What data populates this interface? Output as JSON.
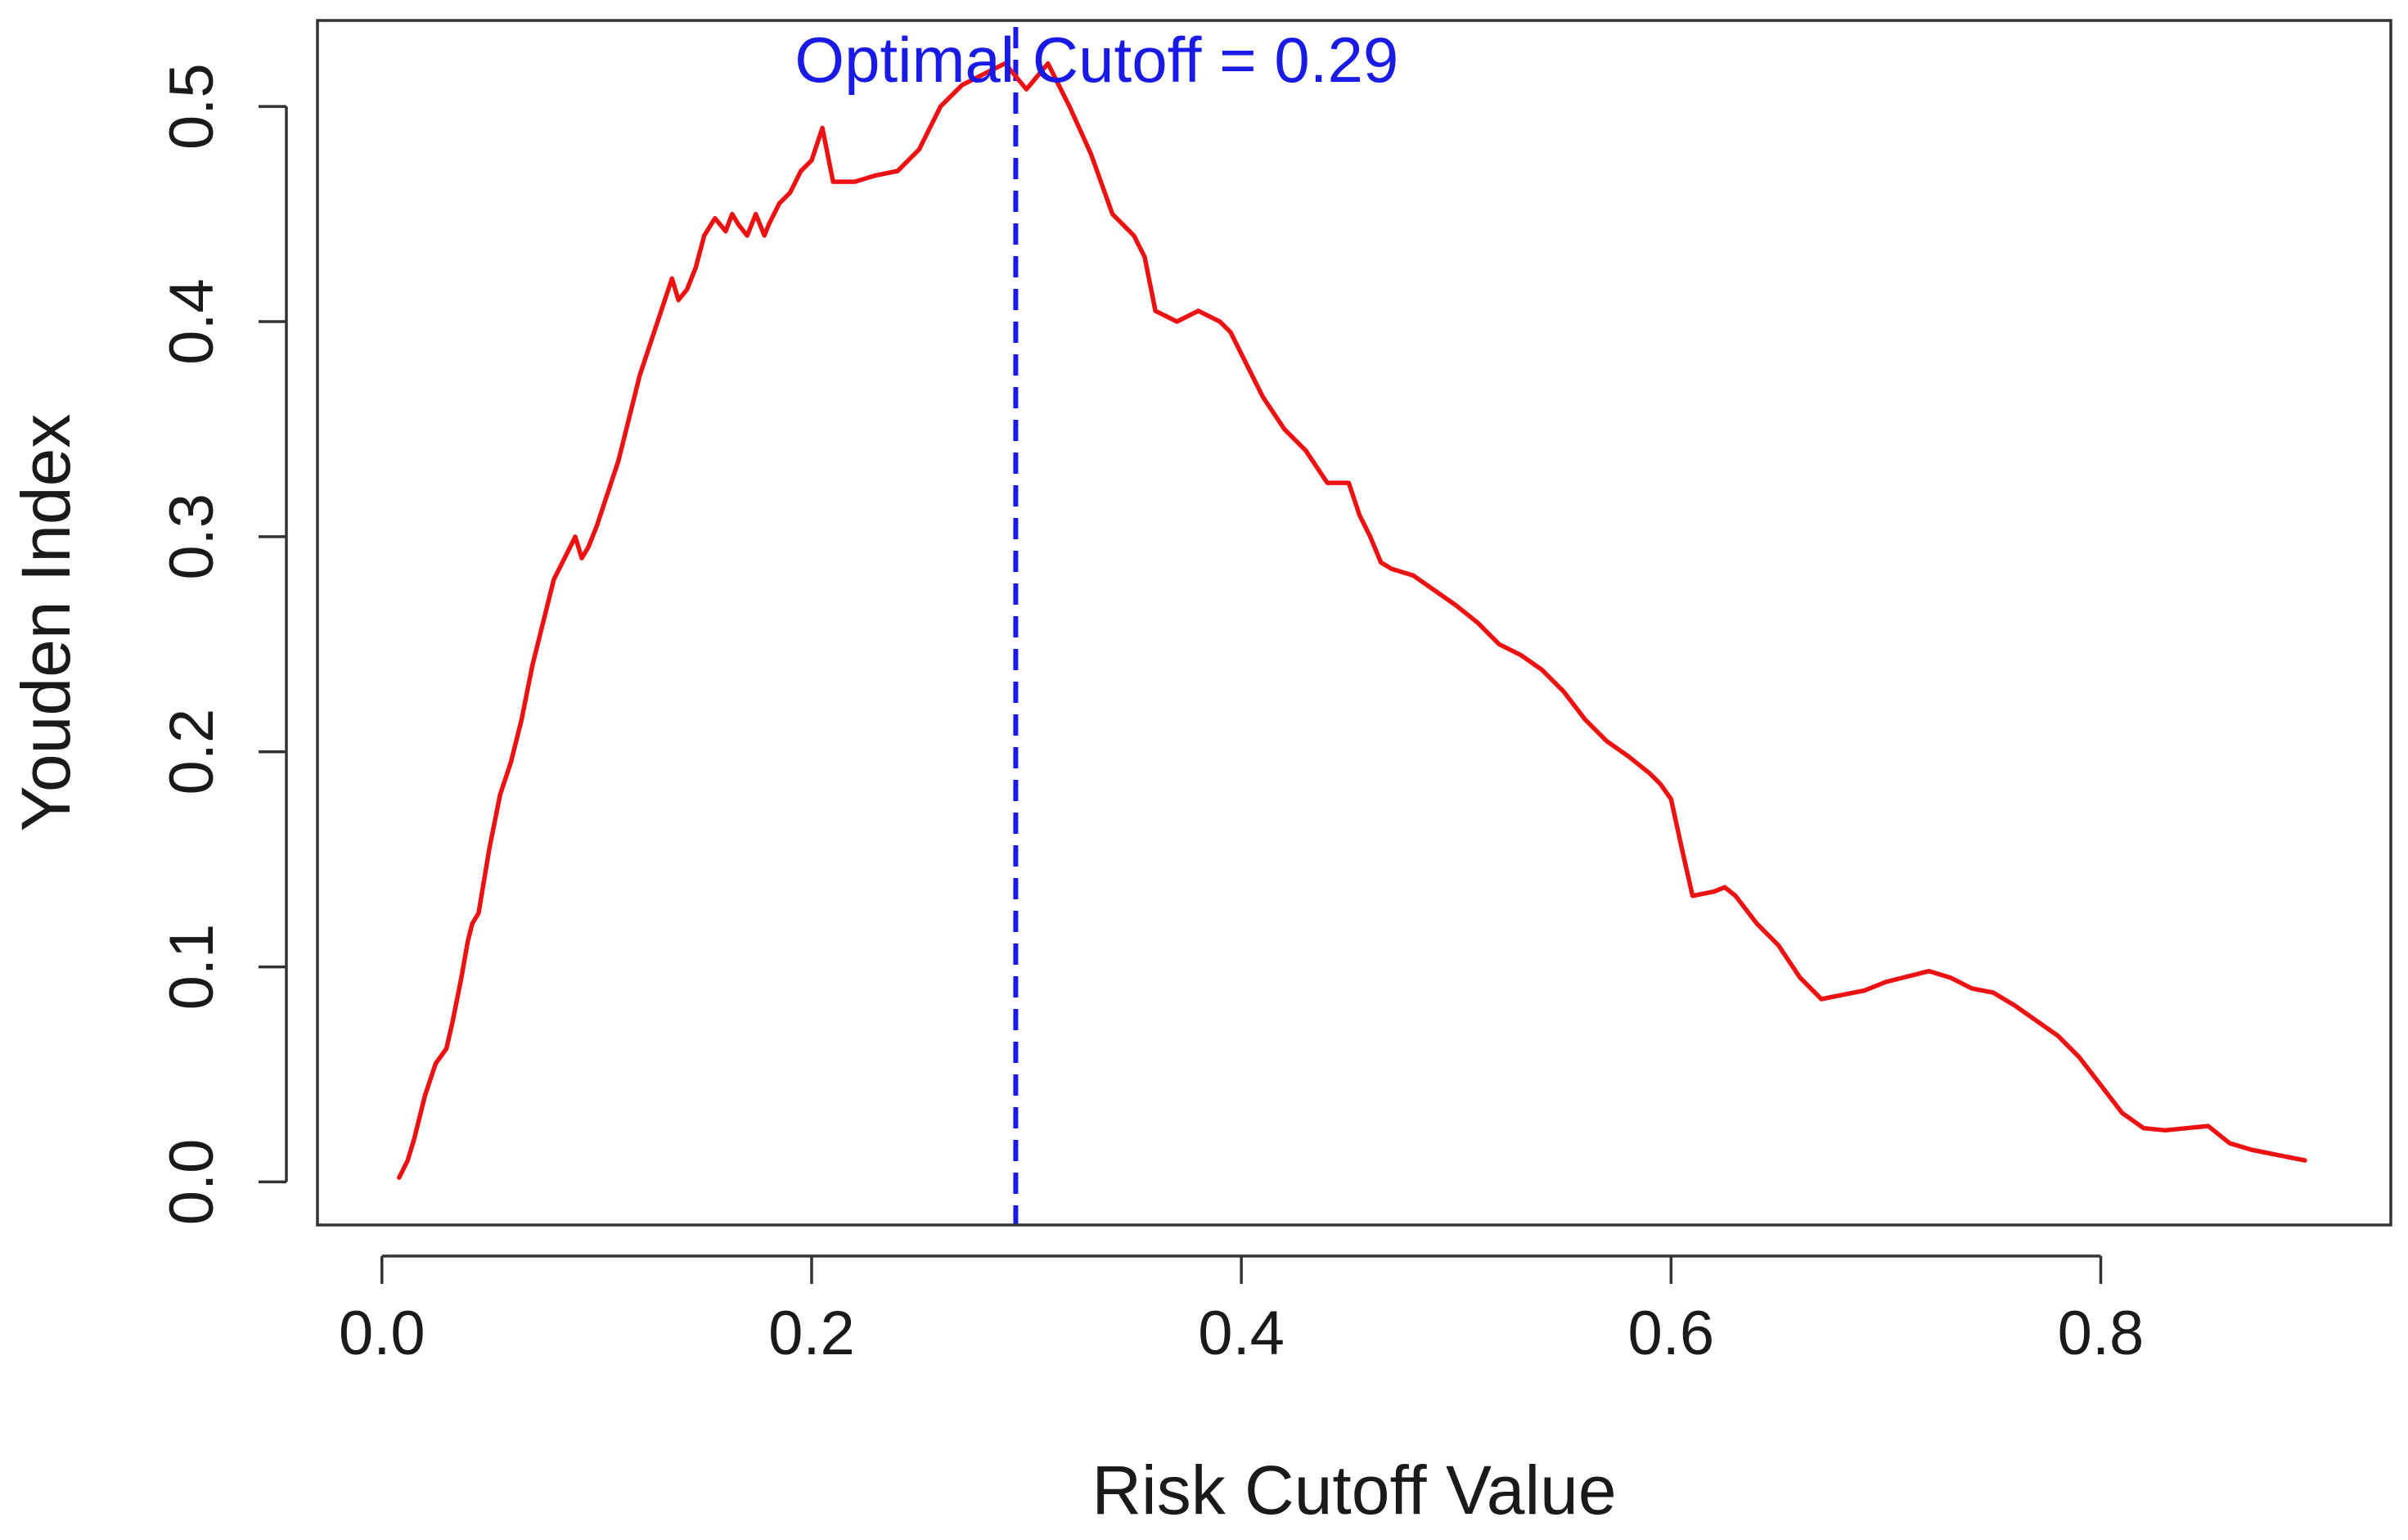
{
  "chart_data": {
    "type": "line",
    "title": "",
    "xlabel": "Risk Cutoff Value",
    "ylabel": "Youden Index",
    "xlim": [
      -0.03,
      0.935
    ],
    "ylim": [
      -0.02,
      0.54
    ],
    "x_ticks": [
      0.0,
      0.2,
      0.4,
      0.6,
      0.8
    ],
    "x_tick_labels": [
      "0.0",
      "0.2",
      "0.4",
      "0.6",
      "0.8"
    ],
    "y_ticks": [
      0.0,
      0.1,
      0.2,
      0.3,
      0.4,
      0.5
    ],
    "y_tick_labels": [
      "0.0",
      "0.1",
      "0.2",
      "0.3",
      "0.4",
      "0.5"
    ],
    "grid": false,
    "series": [
      {
        "color": "#ee1111",
        "x": [
          0.008,
          0.012,
          0.015,
          0.02,
          0.025,
          0.03,
          0.033,
          0.037,
          0.04,
          0.042,
          0.045,
          0.05,
          0.055,
          0.06,
          0.065,
          0.07,
          0.075,
          0.08,
          0.085,
          0.09,
          0.093,
          0.096,
          0.1,
          0.105,
          0.11,
          0.115,
          0.12,
          0.125,
          0.13,
          0.135,
          0.138,
          0.142,
          0.146,
          0.15,
          0.155,
          0.16,
          0.163,
          0.166,
          0.17,
          0.174,
          0.178,
          0.18,
          0.185,
          0.19,
          0.195,
          0.2,
          0.205,
          0.21,
          0.215,
          0.22,
          0.23,
          0.24,
          0.25,
          0.26,
          0.27,
          0.28,
          0.29,
          0.3,
          0.31,
          0.315,
          0.32,
          0.33,
          0.34,
          0.35,
          0.355,
          0.36,
          0.37,
          0.38,
          0.39,
          0.395,
          0.4,
          0.41,
          0.42,
          0.43,
          0.44,
          0.45,
          0.455,
          0.46,
          0.465,
          0.47,
          0.48,
          0.49,
          0.5,
          0.51,
          0.52,
          0.53,
          0.54,
          0.55,
          0.56,
          0.57,
          0.58,
          0.59,
          0.595,
          0.6,
          0.605,
          0.61,
          0.62,
          0.625,
          0.63,
          0.64,
          0.65,
          0.66,
          0.67,
          0.68,
          0.69,
          0.7,
          0.72,
          0.73,
          0.74,
          0.75,
          0.76,
          0.77,
          0.78,
          0.79,
          0.8,
          0.81,
          0.82,
          0.83,
          0.84,
          0.85,
          0.86,
          0.87,
          0.88,
          0.895
        ],
        "y": [
          0.002,
          0.01,
          0.02,
          0.04,
          0.055,
          0.062,
          0.075,
          0.095,
          0.112,
          0.12,
          0.125,
          0.155,
          0.18,
          0.195,
          0.215,
          0.24,
          0.26,
          0.28,
          0.29,
          0.3,
          0.29,
          0.295,
          0.305,
          0.32,
          0.335,
          0.355,
          0.375,
          0.39,
          0.405,
          0.42,
          0.41,
          0.415,
          0.425,
          0.44,
          0.448,
          0.442,
          0.45,
          0.445,
          0.44,
          0.45,
          0.44,
          0.445,
          0.455,
          0.46,
          0.47,
          0.475,
          0.49,
          0.465,
          0.465,
          0.465,
          0.468,
          0.47,
          0.48,
          0.5,
          0.51,
          0.515,
          0.52,
          0.508,
          0.52,
          0.51,
          0.5,
          0.478,
          0.45,
          0.44,
          0.43,
          0.405,
          0.4,
          0.405,
          0.4,
          0.395,
          0.385,
          0.365,
          0.35,
          0.34,
          0.325,
          0.325,
          0.31,
          0.3,
          0.288,
          0.285,
          0.282,
          0.275,
          0.268,
          0.26,
          0.25,
          0.245,
          0.238,
          0.228,
          0.215,
          0.205,
          0.198,
          0.19,
          0.185,
          0.178,
          0.155,
          0.133,
          0.135,
          0.137,
          0.133,
          0.12,
          0.11,
          0.095,
          0.085,
          0.087,
          0.089,
          0.093,
          0.098,
          0.095,
          0.09,
          0.088,
          0.082,
          0.075,
          0.068,
          0.058,
          0.045,
          0.032,
          0.025,
          0.024,
          0.025,
          0.026,
          0.018,
          0.015,
          0.013,
          0.01
        ]
      }
    ],
    "annotations": [
      {
        "type": "vline",
        "x": 0.295,
        "style": "dashed",
        "color": "#1a1ae6"
      },
      {
        "type": "text",
        "text": "Optimal Cutoff = 0.29",
        "x": 0.295,
        "y": 0.52,
        "color": "#1a1ae6"
      }
    ]
  }
}
